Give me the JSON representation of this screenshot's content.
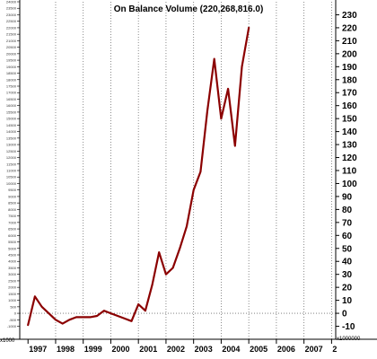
{
  "chart_data": {
    "type": "line",
    "title": "On Balance Volume (220,268,816.0)",
    "unit_label": "x1000000",
    "unit_label_left": "x1000",
    "ylim": [
      -20,
      240
    ],
    "y_ticks_right": [
      "-10",
      "0",
      "10",
      "20",
      "30",
      "40",
      "50",
      "60",
      "70",
      "80",
      "90",
      "100",
      "110",
      "120",
      "130",
      "140",
      "150",
      "160",
      "170",
      "180",
      "190",
      "200",
      "210",
      "220",
      "230"
    ],
    "x_ticks": [
      "1997",
      "1998",
      "1999",
      "2000",
      "2001",
      "2002",
      "2003",
      "2004",
      "2005",
      "2006",
      "2007",
      "2"
    ],
    "grid": true,
    "series": [
      {
        "color": "#8b0000",
        "x": [
          1997.0,
          1997.25,
          1997.5,
          1997.75,
          1998.0,
          1998.25,
          1998.5,
          1998.75,
          1999.0,
          1999.25,
          1999.5,
          1999.75,
          2000.0,
          2000.25,
          2000.5,
          2000.75,
          2001.0,
          2001.25,
          2001.5,
          2001.75,
          2002.0,
          2002.25,
          2002.5,
          2002.75,
          2003.0,
          2003.25,
          2003.5,
          2003.75,
          2004.0,
          2004.25,
          2004.5,
          2004.75,
          2005.0
        ],
        "values": [
          -9,
          13,
          5,
          0,
          -5,
          -8,
          -5,
          -3,
          -3,
          -3,
          -2,
          2,
          0,
          -2,
          -4,
          -6,
          7,
          2,
          22,
          47,
          30,
          35,
          50,
          67,
          95,
          109,
          156,
          196,
          150,
          173,
          129,
          190,
          220
        ]
      }
    ]
  }
}
